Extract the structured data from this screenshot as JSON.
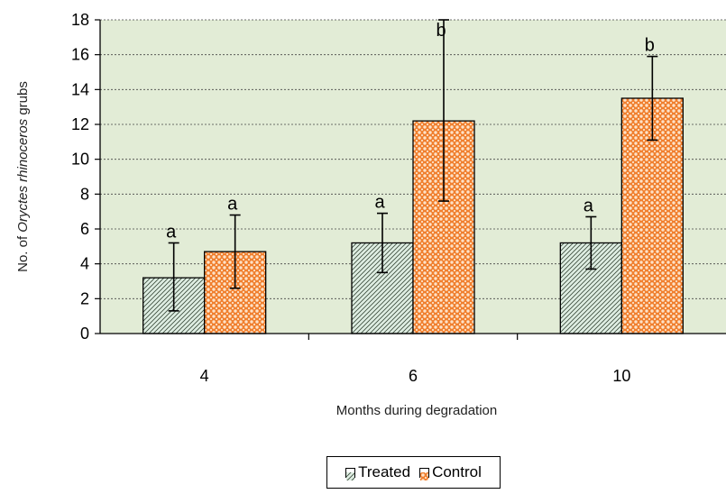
{
  "chart_data": {
    "type": "bar",
    "categories": [
      "4",
      "6",
      "10"
    ],
    "series": [
      {
        "name": "Treated",
        "values": [
          3.2,
          5.2,
          5.2
        ],
        "err_low": [
          1.3,
          3.5,
          3.7
        ],
        "err_high": [
          5.2,
          6.9,
          6.7
        ],
        "letters": [
          "a",
          "a",
          "a"
        ],
        "color": "#dfeee3",
        "pattern": "diagonal-hatch"
      },
      {
        "name": "Control",
        "values": [
          4.7,
          12.2,
          13.5
        ],
        "err_low": [
          2.6,
          7.6,
          11.1
        ],
        "err_high": [
          6.8,
          18.0,
          15.9
        ],
        "letters": [
          "a",
          "b",
          "b"
        ],
        "color": "#f07f2e",
        "pattern": "dotted-lattice"
      }
    ],
    "title": "",
    "xlabel": "Months during degradation",
    "ylabel_parts": [
      "No. of ",
      "Oryctes rhinoceros",
      " grubs"
    ],
    "ylim": [
      0,
      18
    ],
    "yticks": [
      "0",
      "2",
      "4",
      "6",
      "8",
      "10",
      "12",
      "14",
      "16",
      "18"
    ],
    "grid": true,
    "plot_background": "#e2ecd6",
    "legend": "bottom-center"
  }
}
